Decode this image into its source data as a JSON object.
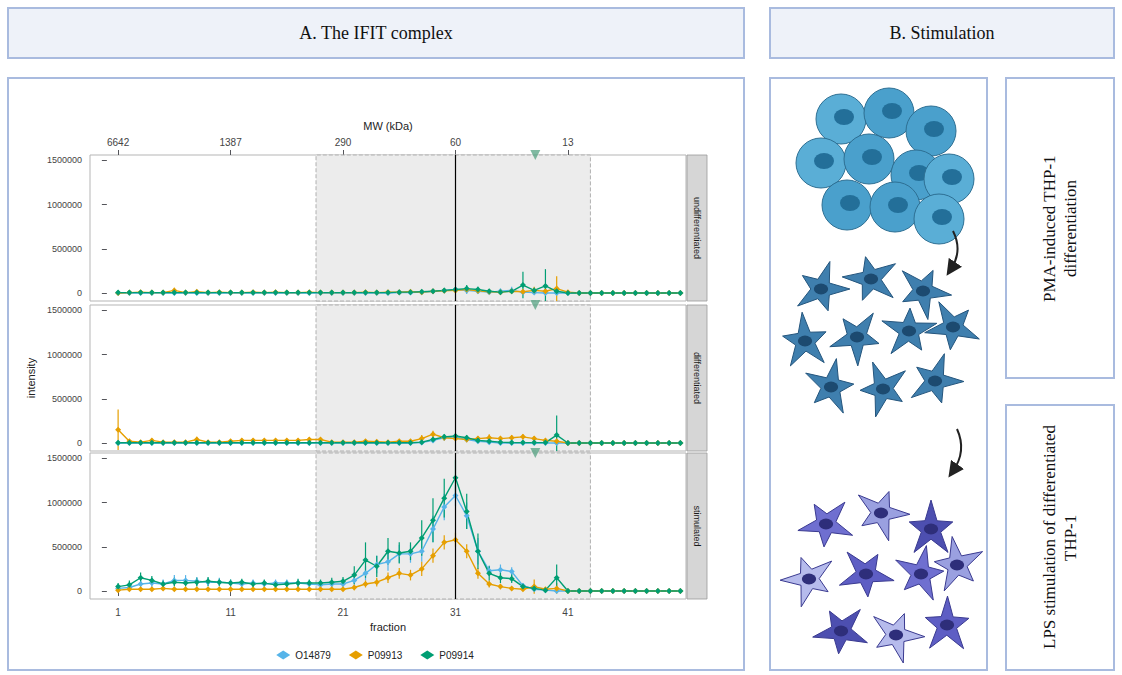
{
  "chart_data": {
    "type": "line",
    "title": "A. The IFIT complex",
    "x_label": "fraction",
    "y_label": "intensity",
    "x2_label": "MW (kDa)",
    "xlim": [
      -1.5,
      51.5
    ],
    "xticks": [
      1,
      11,
      21,
      31,
      41
    ],
    "x2ticks": [
      {
        "value": 1,
        "label": "6642"
      },
      {
        "value": 11,
        "label": "1387"
      },
      {
        "value": 21,
        "label": "290"
      },
      {
        "value": 31,
        "label": "60"
      },
      {
        "value": 41,
        "label": "13"
      }
    ],
    "ylim": [
      -90000,
      1560000
    ],
    "yticks": [
      0,
      500000,
      1000000,
      1500000
    ],
    "grid": false,
    "legend": "bottom",
    "facets": [
      "undifferentiated",
      "differentiated",
      "stimulated"
    ],
    "annotations": {
      "shaded_range": [
        18.6,
        43
      ],
      "reference_line": 31,
      "triangle": {
        "x": 38.1,
        "color": "#5fa88a",
        "marker": "triangle"
      }
    },
    "x": [
      1,
      2,
      3,
      4,
      5,
      6,
      7,
      8,
      9,
      10,
      11,
      12,
      13,
      14,
      15,
      16,
      17,
      18,
      19,
      20,
      21,
      22,
      23,
      24,
      25,
      26,
      27,
      28,
      29,
      30,
      31,
      32,
      33,
      34,
      35,
      36,
      37,
      38,
      39,
      40,
      41,
      42,
      43,
      44,
      45,
      46,
      47,
      48,
      49,
      50,
      51
    ],
    "series": [
      {
        "name": "O14879",
        "color": "#56B4E9",
        "marker": "diamond",
        "line_style": "solid",
        "values": [
          [
            0,
            0,
            0,
            0,
            0,
            0,
            0,
            0,
            0,
            0,
            0,
            0,
            0,
            0,
            0,
            0,
            0,
            0,
            0,
            0,
            0,
            0,
            0,
            0,
            0,
            5000,
            5000,
            10000,
            20000,
            30000,
            40000,
            30000,
            20000,
            10000,
            20000,
            30000,
            10000,
            5000,
            0,
            0,
            0,
            0,
            0,
            0,
            0,
            0,
            0,
            0,
            0,
            0,
            0
          ],
          [
            0,
            0,
            0,
            0,
            0,
            0,
            0,
            0,
            0,
            0,
            0,
            0,
            0,
            0,
            0,
            0,
            0,
            0,
            0,
            0,
            0,
            0,
            0,
            0,
            0,
            0,
            0,
            5000,
            30000,
            60000,
            70000,
            40000,
            20000,
            10000,
            0,
            0,
            0,
            0,
            0,
            0,
            0,
            0,
            0,
            0,
            0,
            0,
            0,
            0,
            0,
            0,
            0
          ],
          [
            30000,
            40000,
            80000,
            90000,
            80000,
            120000,
            120000,
            110000,
            100000,
            100000,
            90000,
            80000,
            90000,
            80000,
            90000,
            90000,
            90000,
            80000,
            70000,
            80000,
            80000,
            120000,
            200000,
            300000,
            330000,
            420000,
            420000,
            450000,
            700000,
            950000,
            1080000,
            850000,
            450000,
            230000,
            240000,
            220000,
            60000,
            20000,
            10000,
            0,
            0,
            0,
            0,
            0,
            0,
            0,
            0,
            0,
            0,
            0,
            0
          ]
        ],
        "errors": [
          [
            0,
            0,
            0,
            0,
            0,
            0,
            0,
            0,
            0,
            0,
            0,
            0,
            0,
            0,
            0,
            0,
            0,
            0,
            0,
            0,
            0,
            0,
            0,
            0,
            0,
            5000,
            5000,
            10000,
            15000,
            20000,
            30000,
            40000,
            30000,
            15000,
            30000,
            40000,
            20000,
            10000,
            0,
            0,
            0,
            0,
            0,
            0,
            0,
            0,
            0,
            0,
            0,
            0,
            0
          ],
          [
            0,
            0,
            0,
            0,
            0,
            0,
            0,
            0,
            0,
            0,
            0,
            0,
            0,
            0,
            0,
            0,
            0,
            0,
            0,
            0,
            0,
            0,
            0,
            0,
            0,
            0,
            0,
            5000,
            20000,
            30000,
            30000,
            20000,
            15000,
            10000,
            0,
            0,
            0,
            0,
            0,
            0,
            0,
            0,
            0,
            0,
            0,
            0,
            0,
            0,
            0,
            0,
            0
          ],
          [
            30000,
            30000,
            50000,
            60000,
            50000,
            60000,
            60000,
            50000,
            50000,
            50000,
            40000,
            40000,
            40000,
            40000,
            40000,
            40000,
            40000,
            40000,
            40000,
            40000,
            40000,
            60000,
            80000,
            100000,
            100000,
            100000,
            100000,
            120000,
            150000,
            150000,
            120000,
            150000,
            150000,
            60000,
            60000,
            50000,
            30000,
            20000,
            10000,
            0,
            0,
            0,
            0,
            0,
            0,
            0,
            0,
            0,
            0,
            0,
            0
          ]
        ]
      },
      {
        "name": "P09913",
        "color": "#E69F00",
        "marker": "diamond",
        "line_style": "solid",
        "values": [
          [
            0,
            5000,
            10000,
            5000,
            5000,
            30000,
            5000,
            15000,
            5000,
            10000,
            5000,
            5000,
            10000,
            5000,
            10000,
            5000,
            5000,
            10000,
            5000,
            5000,
            5000,
            5000,
            10000,
            5000,
            10000,
            10000,
            15000,
            10000,
            20000,
            25000,
            30000,
            40000,
            25000,
            15000,
            10000,
            20000,
            15000,
            30000,
            20000,
            50000,
            10000,
            0,
            0,
            0,
            0,
            0,
            0,
            0,
            0,
            0,
            0
          ],
          [
            150000,
            20000,
            10000,
            30000,
            10000,
            10000,
            10000,
            40000,
            10000,
            10000,
            20000,
            30000,
            30000,
            30000,
            30000,
            30000,
            30000,
            40000,
            40000,
            10000,
            10000,
            10000,
            20000,
            15000,
            10000,
            20000,
            20000,
            50000,
            100000,
            60000,
            50000,
            40000,
            50000,
            60000,
            50000,
            60000,
            70000,
            50000,
            30000,
            20000,
            0,
            0,
            0,
            0,
            0,
            0,
            0,
            0,
            0,
            0,
            0
          ],
          [
            10000,
            20000,
            20000,
            20000,
            30000,
            20000,
            20000,
            20000,
            20000,
            20000,
            20000,
            20000,
            20000,
            20000,
            20000,
            20000,
            20000,
            20000,
            20000,
            20000,
            20000,
            40000,
            80000,
            100000,
            150000,
            200000,
            180000,
            250000,
            400000,
            550000,
            580000,
            450000,
            200000,
            80000,
            50000,
            30000,
            20000,
            50000,
            20000,
            30000,
            0,
            0,
            0,
            0,
            0,
            0,
            0,
            0,
            0,
            0,
            0
          ]
        ],
        "errors": [
          [
            0,
            5000,
            10000,
            5000,
            5000,
            30000,
            5000,
            15000,
            5000,
            10000,
            5000,
            5000,
            10000,
            5000,
            10000,
            5000,
            5000,
            10000,
            5000,
            5000,
            5000,
            5000,
            10000,
            10000,
            15000,
            15000,
            20000,
            15000,
            20000,
            25000,
            30000,
            35000,
            30000,
            20000,
            15000,
            20000,
            20000,
            40000,
            30000,
            140000,
            10000,
            0,
            0,
            0,
            0,
            0,
            0,
            0,
            0,
            0,
            0
          ],
          [
            230000,
            15000,
            10000,
            20000,
            10000,
            5000,
            5000,
            30000,
            10000,
            5000,
            20000,
            25000,
            20000,
            20000,
            25000,
            20000,
            20000,
            25000,
            20000,
            10000,
            10000,
            10000,
            20000,
            10000,
            10000,
            15000,
            15000,
            40000,
            40000,
            30000,
            30000,
            30000,
            30000,
            40000,
            30000,
            30000,
            30000,
            30000,
            20000,
            15000,
            0,
            0,
            0,
            0,
            0,
            0,
            0,
            0,
            0,
            0,
            0
          ],
          [
            10000,
            10000,
            10000,
            10000,
            10000,
            10000,
            10000,
            10000,
            10000,
            10000,
            10000,
            10000,
            10000,
            10000,
            10000,
            10000,
            10000,
            10000,
            10000,
            10000,
            15000,
            30000,
            40000,
            50000,
            60000,
            60000,
            60000,
            80000,
            80000,
            80000,
            80000,
            80000,
            60000,
            40000,
            30000,
            20000,
            20000,
            80000,
            20000,
            60000,
            0,
            0,
            0,
            0,
            0,
            0,
            0,
            0,
            0,
            0,
            0
          ]
        ]
      },
      {
        "name": "P09914",
        "color": "#009E73",
        "marker": "diamond",
        "line_style": "solid",
        "values": [
          [
            5000,
            5000,
            5000,
            5000,
            5000,
            5000,
            5000,
            5000,
            5000,
            5000,
            5000,
            5000,
            5000,
            5000,
            5000,
            5000,
            5000,
            5000,
            5000,
            5000,
            5000,
            5000,
            5000,
            5000,
            5000,
            10000,
            10000,
            15000,
            20000,
            30000,
            40000,
            50000,
            40000,
            20000,
            10000,
            20000,
            90000,
            30000,
            80000,
            20000,
            0,
            0,
            0,
            0,
            0,
            0,
            0,
            0,
            0,
            0,
            0
          ],
          [
            3000,
            3000,
            3000,
            3000,
            3000,
            3000,
            3000,
            3000,
            3000,
            3000,
            3000,
            3000,
            3000,
            3000,
            3000,
            3000,
            3000,
            3000,
            3000,
            3000,
            3000,
            3000,
            3000,
            3000,
            3000,
            3000,
            3000,
            10000,
            40000,
            70000,
            80000,
            60000,
            30000,
            20000,
            10000,
            5000,
            5000,
            5000,
            5000,
            90000,
            0,
            0,
            0,
            0,
            0,
            0,
            0,
            0,
            0,
            0,
            0
          ],
          [
            50000,
            70000,
            150000,
            120000,
            80000,
            100000,
            90000,
            100000,
            110000,
            100000,
            90000,
            100000,
            80000,
            90000,
            70000,
            80000,
            90000,
            90000,
            90000,
            100000,
            110000,
            180000,
            350000,
            280000,
            450000,
            430000,
            450000,
            600000,
            800000,
            1050000,
            1280000,
            900000,
            450000,
            200000,
            150000,
            140000,
            50000,
            30000,
            10000,
            150000,
            0,
            0,
            0,
            0,
            0,
            0,
            0,
            0,
            0,
            0,
            0
          ]
        ],
        "errors": [
          [
            3000,
            3000,
            3000,
            3000,
            3000,
            3000,
            3000,
            3000,
            3000,
            3000,
            3000,
            3000,
            3000,
            3000,
            3000,
            3000,
            3000,
            3000,
            3000,
            3000,
            3000,
            3000,
            3000,
            3000,
            3000,
            5000,
            10000,
            10000,
            15000,
            20000,
            30000,
            40000,
            30000,
            20000,
            10000,
            20000,
            150000,
            30000,
            190000,
            20000,
            0,
            0,
            0,
            0,
            0,
            0,
            0,
            0,
            0,
            0,
            0
          ],
          [
            3000,
            3000,
            3000,
            3000,
            3000,
            3000,
            3000,
            3000,
            3000,
            3000,
            3000,
            3000,
            3000,
            3000,
            3000,
            3000,
            3000,
            3000,
            3000,
            3000,
            3000,
            3000,
            3000,
            3000,
            3000,
            3000,
            3000,
            10000,
            20000,
            30000,
            30000,
            30000,
            20000,
            15000,
            10000,
            5000,
            5000,
            5000,
            5000,
            220000,
            0,
            0,
            0,
            0,
            0,
            0,
            0,
            0,
            0,
            0,
            0
          ],
          [
            40000,
            50000,
            60000,
            50000,
            40000,
            50000,
            40000,
            50000,
            50000,
            40000,
            40000,
            40000,
            40000,
            40000,
            40000,
            40000,
            50000,
            40000,
            40000,
            50000,
            50000,
            100000,
            200000,
            120000,
            150000,
            120000,
            100000,
            200000,
            250000,
            220000,
            200000,
            200000,
            200000,
            80000,
            60000,
            50000,
            30000,
            20000,
            10000,
            150000,
            0,
            0,
            0,
            0,
            0,
            0,
            0,
            0,
            0,
            0,
            0
          ]
        ]
      }
    ]
  },
  "diagram": {
    "title": "B. Stimulation",
    "steps": [
      "PMA-induced THP-1 differentiation",
      "LPS stimulation of differentiated THP-1"
    ]
  }
}
